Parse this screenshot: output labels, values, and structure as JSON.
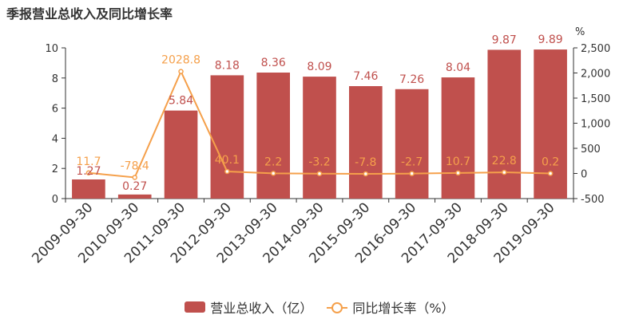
{
  "title": "季报营业总收入及同比增长率",
  "colors": {
    "bar": "#c0504d",
    "line": "#f5a04b",
    "bar_label": "#c0504d",
    "line_label": "#f5a04b"
  },
  "chart_data": {
    "type": "bar",
    "title": "季报营业总收入及同比增长率",
    "categories": [
      "2009-09-30",
      "2010-09-30",
      "2011-09-30",
      "2012-09-30",
      "2013-09-30",
      "2014-09-30",
      "2015-09-30",
      "2016-09-30",
      "2017-09-30",
      "2018-09-30",
      "2019-09-30"
    ],
    "series": [
      {
        "name": "营业总收入（亿）",
        "type": "bar",
        "axis": "left",
        "values": [
          1.27,
          0.27,
          5.84,
          8.18,
          8.36,
          8.09,
          7.46,
          7.26,
          8.04,
          9.87,
          9.89
        ],
        "labels": [
          "1.27",
          "0.27",
          "5.84",
          "8.18",
          "8.36",
          "8.09",
          "7.46",
          "7.26",
          "8.04",
          "9.87",
          "9.89"
        ]
      },
      {
        "name": "同比增长率（%）",
        "type": "line",
        "axis": "right",
        "values": [
          11.7,
          -78.4,
          2028.8,
          40.1,
          2.2,
          -3.2,
          -7.8,
          -2.7,
          10.7,
          22.8,
          0.2
        ],
        "labels": [
          "11.7",
          "-78.4",
          "2028.8",
          "40.1",
          "2.2",
          "-3.2",
          "-7.8",
          "-2.7",
          "10.7",
          "22.8",
          "0.2"
        ]
      }
    ],
    "ylim_left": [
      0,
      10
    ],
    "yticks_left": [
      "0",
      "2",
      "4",
      "6",
      "8",
      "10"
    ],
    "ylim_right": [
      -500,
      2500
    ],
    "yticks_right": [
      "-500",
      "0",
      "500",
      "1,000",
      "1,500",
      "2,000",
      "2,500"
    ],
    "right_unit": "%",
    "grid": false,
    "legend": "bottom"
  }
}
